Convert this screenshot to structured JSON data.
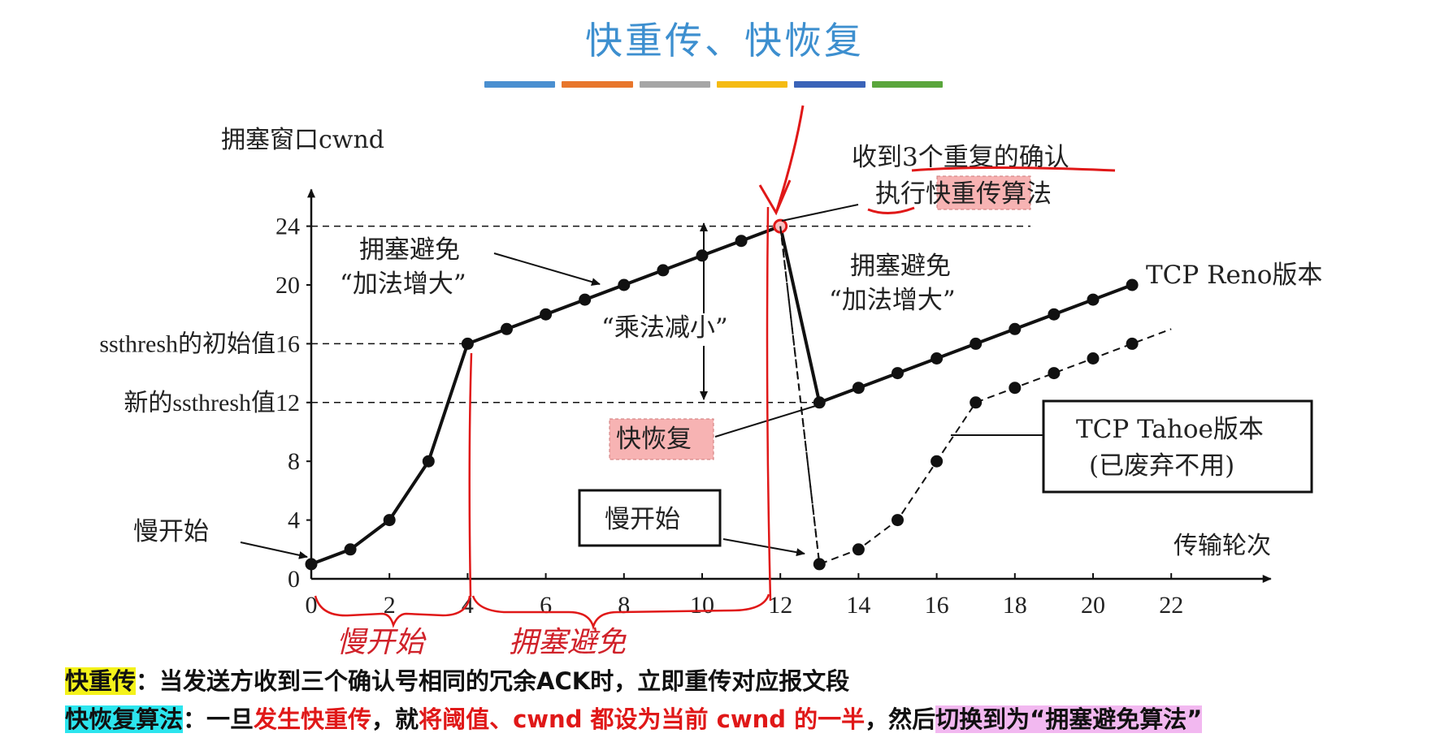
{
  "slide": {
    "title": "快重传、快恢复",
    "color_bar": [
      "#4a8fd0",
      "#e8762b",
      "#a6a6a6",
      "#f5bb12",
      "#3a63b8",
      "#5aa63c"
    ]
  },
  "chart_data": {
    "type": "line",
    "ylabel": "拥塞窗口cwnd",
    "xlabel": "传输轮次",
    "x_ticks": [
      0,
      2,
      4,
      6,
      8,
      10,
      12,
      14,
      16,
      18,
      20,
      22
    ],
    "y_ticks": [
      0,
      4,
      8,
      12,
      16,
      20,
      24
    ],
    "xlim": [
      0,
      23.3
    ],
    "ylim": [
      0,
      26.5
    ],
    "series": [
      {
        "name": "TCP Reno版本",
        "points": [
          [
            0,
            1
          ],
          [
            1,
            2
          ],
          [
            2,
            4
          ],
          [
            3,
            8
          ],
          [
            4,
            16
          ],
          [
            5,
            17
          ],
          [
            6,
            18
          ],
          [
            7,
            19
          ],
          [
            8,
            20
          ],
          [
            9,
            21
          ],
          [
            10,
            22
          ],
          [
            11,
            23
          ],
          [
            12,
            24
          ],
          [
            13,
            12
          ],
          [
            14,
            13
          ],
          [
            15,
            14
          ],
          [
            16,
            15
          ],
          [
            17,
            16
          ],
          [
            18,
            17
          ],
          [
            19,
            18
          ],
          [
            20,
            19
          ],
          [
            21,
            20
          ]
        ],
        "style": "solid"
      },
      {
        "name": "TCP Tahoe版本",
        "points": [
          [
            12,
            24
          ],
          [
            13,
            1
          ],
          [
            14,
            2
          ],
          [
            15,
            4
          ],
          [
            16,
            8
          ],
          [
            17,
            12
          ],
          [
            18,
            13
          ],
          [
            19,
            14
          ],
          [
            20,
            15
          ],
          [
            21,
            16
          ]
        ],
        "extend_to": [
          22,
          17
        ],
        "style": "dashed"
      }
    ],
    "reference_lines": [
      {
        "y": 24,
        "label": "24"
      },
      {
        "y": 16,
        "label": "ssthresh的初始值16"
      },
      {
        "y": 12,
        "label": "新的ssthresh值12"
      }
    ],
    "annotations": {
      "dup_ack_line1": "收到3个重复的确认",
      "dup_ack_line2_a": "执行",
      "dup_ack_line2_b": "快重传",
      "dup_ack_line2_c": "算法",
      "ca1_line1": "拥塞避免",
      "ca1_line2": "“加法增大”",
      "ca2_line1": "拥塞避免",
      "ca2_line2": "“加法增大”",
      "mult_decrease": "“乘法减小”",
      "fast_recovery": "快恢复",
      "slow_start_left": "慢开始",
      "slow_start_box": "慢开始",
      "reno_label": "TCP Reno版本",
      "tahoe_line1": "TCP Tahoe版本",
      "tahoe_line2": "(已废弃不用)"
    },
    "handwritten": {
      "slow_start": "慢开始",
      "congestion_avoid": "拥塞避免"
    }
  },
  "footer": {
    "line1_term": "快重传",
    "line1_text": "：当发送方收到三个确认号相同的冗余ACK时，立即重传对应报文段",
    "line2_term": "快恢复算法",
    "line2_a": "：一旦",
    "line2_b": "发生快重传",
    "line2_c": "，就",
    "line2_d": "将阈值、cwnd 都设为当前 cwnd 的一半",
    "line2_e": "，然后",
    "line2_f": "切换到为“拥塞避免算法”"
  }
}
